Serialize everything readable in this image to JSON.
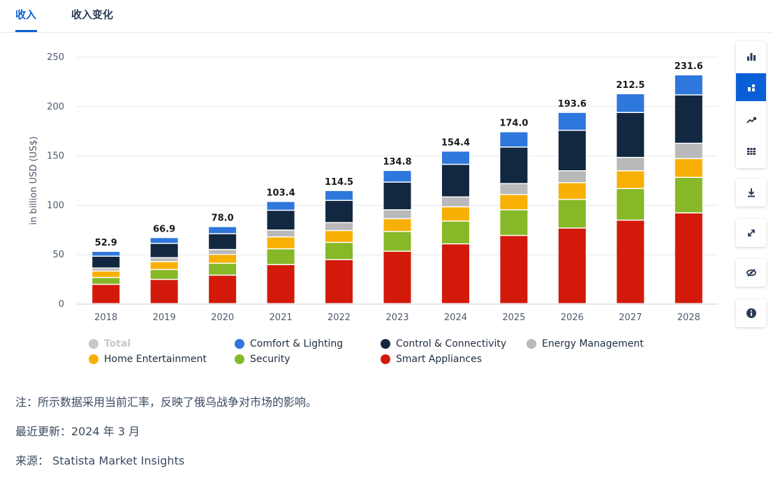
{
  "tabs": [
    {
      "label": "收入",
      "active": true
    },
    {
      "label": "收入变化",
      "active": false
    }
  ],
  "chart_data": {
    "type": "bar",
    "stacked": true,
    "ylabel": "in billion USD (US$)",
    "ylim": [
      0,
      250
    ],
    "yticks": [
      0,
      50,
      100,
      150,
      200,
      250
    ],
    "grid": true,
    "categories": [
      "2018",
      "2019",
      "2020",
      "2021",
      "2022",
      "2023",
      "2024",
      "2025",
      "2026",
      "2027",
      "2028"
    ],
    "totals": [
      "52.9",
      "66.9",
      "78.0",
      "103.4",
      "114.5",
      "134.8",
      "154.4",
      "174.0",
      "193.6",
      "212.5",
      "231.6"
    ],
    "series": [
      {
        "name": "Smart Appliances",
        "color": "#d31a0a",
        "values": [
          19.5,
          24.5,
          28.8,
          39.5,
          44.5,
          53.0,
          60.5,
          69.0,
          76.5,
          84.5,
          91.8
        ]
      },
      {
        "name": "Security",
        "color": "#86b828",
        "values": [
          7.0,
          10.0,
          12.0,
          16.0,
          17.5,
          20.0,
          23.0,
          26.0,
          29.0,
          32.0,
          36.0
        ]
      },
      {
        "name": "Home Entertainment",
        "color": "#f9b004",
        "values": [
          6.5,
          8.0,
          9.0,
          12.0,
          12.0,
          13.0,
          14.5,
          15.5,
          17.0,
          18.0,
          19.0
        ]
      },
      {
        "name": "Energy Management",
        "color": "#b9b9b9",
        "values": [
          3.0,
          4.0,
          5.0,
          7.0,
          8.0,
          9.0,
          10.0,
          11.0,
          12.0,
          13.5,
          15.5
        ]
      },
      {
        "name": "Control & Connectivity",
        "color": "#112840",
        "values": [
          12.0,
          14.5,
          16.0,
          20.0,
          22.5,
          28.0,
          33.0,
          37.0,
          41.0,
          45.5,
          49.0
        ]
      },
      {
        "name": "Comfort & Lighting",
        "color": "#2e77dc",
        "values": [
          4.9,
          5.9,
          7.2,
          8.9,
          10.0,
          11.8,
          13.4,
          15.5,
          18.1,
          19.0,
          20.3
        ]
      }
    ],
    "legend": [
      {
        "label": "Total",
        "color": "#c8c8c8",
        "muted": true
      },
      {
        "label": "Comfort & Lighting",
        "color": "#2e77dc",
        "muted": false
      },
      {
        "label": "Control & Connectivity",
        "color": "#112840",
        "muted": false
      },
      {
        "label": "Energy Management",
        "color": "#b9b9b9",
        "muted": false
      },
      {
        "label": "Home Entertainment",
        "color": "#f9b004",
        "muted": false
      },
      {
        "label": "Security",
        "color": "#86b828",
        "muted": false
      },
      {
        "label": "Smart Appliances",
        "color": "#d31a0a",
        "muted": false
      }
    ]
  },
  "toolbar": {
    "buttons": [
      {
        "icon": "bar-chart-icon",
        "active": false
      },
      {
        "icon": "stacked-chart-icon",
        "active": true
      },
      {
        "icon": "trend-line-icon",
        "active": false
      },
      {
        "icon": "table-icon",
        "active": false
      },
      {
        "icon": "download-icon",
        "active": false
      },
      {
        "icon": "fullscreen-icon",
        "active": false
      },
      {
        "icon": "hide-icon",
        "active": false
      },
      {
        "icon": "info-icon",
        "active": false
      }
    ]
  },
  "notes": {
    "note": "注：所示数据采用当前汇率，反映了俄乌战争对市场的影响。",
    "updated": "最近更新：2024 年 3 月",
    "source": "来源： Statista Market Insights"
  }
}
